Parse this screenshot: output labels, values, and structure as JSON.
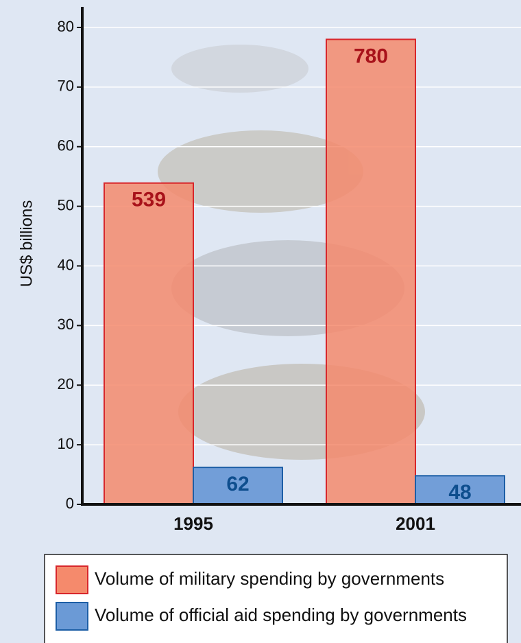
{
  "chart_data": {
    "type": "bar",
    "y_label": "US$ billions",
    "categories": [
      "1995",
      "2001"
    ],
    "series": [
      {
        "name": "Volume of military spending by governments",
        "color": "#f58a6c",
        "values": [
          53.9,
          78
        ],
        "value_labels": [
          "539",
          "780"
        ]
      },
      {
        "name": "Volume of official aid spending by governments",
        "color": "#6b9ad6",
        "values": [
          6.2,
          4.8
        ],
        "value_labels": [
          "62",
          "48"
        ]
      }
    ],
    "ylim": [
      0,
      80
    ],
    "yticks": [
      0,
      10,
      20,
      30,
      40,
      50,
      60,
      70,
      80
    ],
    "grid": true
  }
}
